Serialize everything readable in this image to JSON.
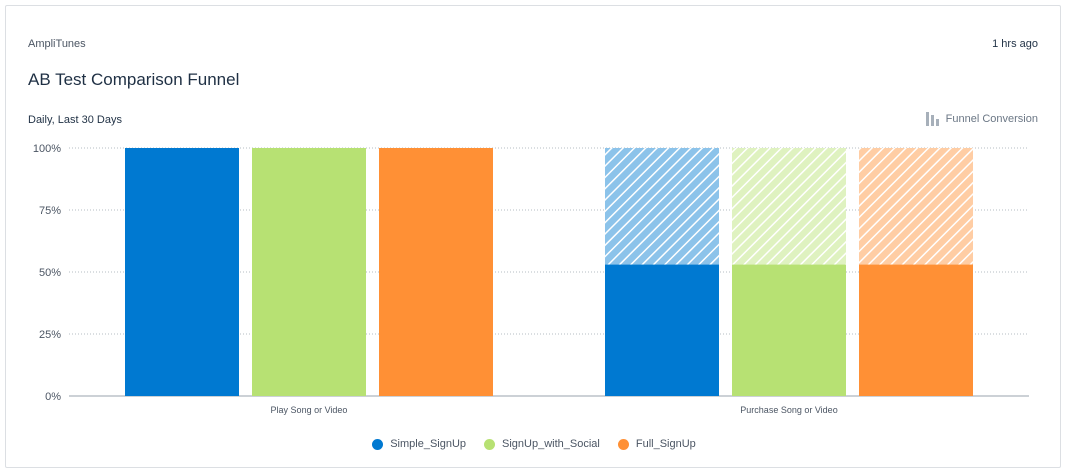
{
  "header": {
    "app_name": "AmpliTunes",
    "updated": "1 hrs ago",
    "title": "AB Test Comparison Funnel",
    "subtitle": "Daily, Last 30 Days",
    "metric_label": "Funnel Conversion",
    "metric_icon": "funnel-bars-icon"
  },
  "chart_data": {
    "type": "bar",
    "categories": [
      "Play Song or Video",
      "Purchase Song or Video"
    ],
    "series": [
      {
        "name": "Simple_SignUp",
        "color": "#0079d1",
        "values": [
          100,
          53
        ]
      },
      {
        "name": "SignUp_with_Social",
        "color": "#b7e173",
        "values": [
          100,
          53
        ]
      },
      {
        "name": "Full_SignUp",
        "color": "#ff9035",
        "values": [
          100,
          53
        ]
      }
    ],
    "dropoff_shown": true,
    "ylim": [
      0,
      100
    ],
    "yticks": [
      "0%",
      "25%",
      "50%",
      "75%",
      "100%"
    ],
    "grid": true,
    "legend_position": "bottom"
  }
}
